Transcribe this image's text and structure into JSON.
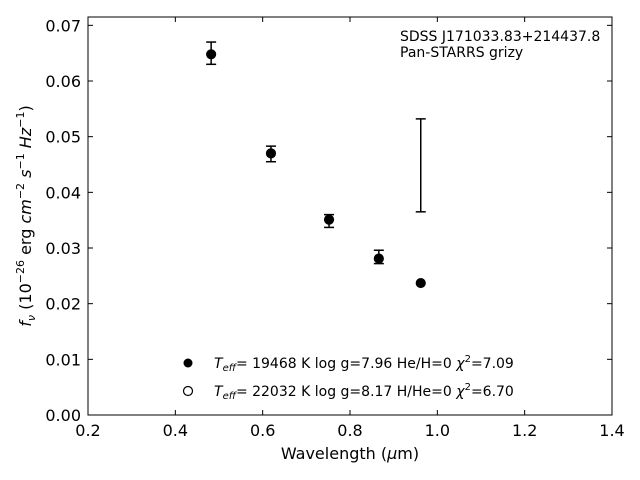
{
  "chart_data": {
    "type": "scatter",
    "xlabel_prefix": "Wavelength (",
    "xlabel_mu": "μ",
    "xlabel_suffix": "m)",
    "ylabel": "f_ν (10^-26 erg cm^-2 s^-1 Hz^-1)",
    "xlim": [
      0.2,
      1.4
    ],
    "ylim": [
      0.0,
      0.0715
    ],
    "xticks": [
      0.2,
      0.4,
      0.6,
      0.8,
      1.0,
      1.2,
      1.4
    ],
    "xtick_labels": [
      "0.2",
      "0.4",
      "0.6",
      "0.8",
      "1.0",
      "1.2",
      "1.4"
    ],
    "yticks": [
      0.0,
      0.01,
      0.02,
      0.03,
      0.04,
      0.05,
      0.06,
      0.07
    ],
    "ytick_labels": [
      "0.00",
      "0.01",
      "0.02",
      "0.03",
      "0.04",
      "0.05",
      "0.06",
      "0.07"
    ],
    "grid": false,
    "annotation_lines": [
      "SDSS J171033.83+214437.8",
      "Pan-STARRS grizy"
    ],
    "observed": [
      {
        "x": 0.482,
        "low": 0.063,
        "high": 0.067
      },
      {
        "x": 0.619,
        "low": 0.0455,
        "high": 0.0483
      },
      {
        "x": 0.752,
        "low": 0.0337,
        "high": 0.036
      },
      {
        "x": 0.866,
        "low": 0.0272,
        "high": 0.0296
      },
      {
        "x": 0.962,
        "low": 0.0365,
        "high": 0.0532
      }
    ],
    "series": [
      {
        "marker": "filled-circle",
        "x": [
          0.482,
          0.619,
          0.752,
          0.866,
          0.962
        ],
        "y": [
          0.0648,
          0.047,
          0.0351,
          0.0281,
          0.0237
        ],
        "legend": {
          "teff_value": "= 19468 K",
          "rest": "log g=7.96  He/H=0",
          "chi_value": "=7.09"
        }
      },
      {
        "marker": "open-circle",
        "x": [
          0.482,
          0.619,
          0.752,
          0.866,
          0.962
        ],
        "y": [
          0.0648,
          0.047,
          0.0351,
          0.0281,
          0.0237
        ],
        "legend": {
          "teff_value": "= 22032 K",
          "rest": "log g=8.17  H/He=0",
          "chi_value": "=6.70"
        }
      }
    ],
    "legend_placement": "lower-center",
    "colors": {
      "axes": "#000000",
      "markers": "#000000"
    }
  }
}
